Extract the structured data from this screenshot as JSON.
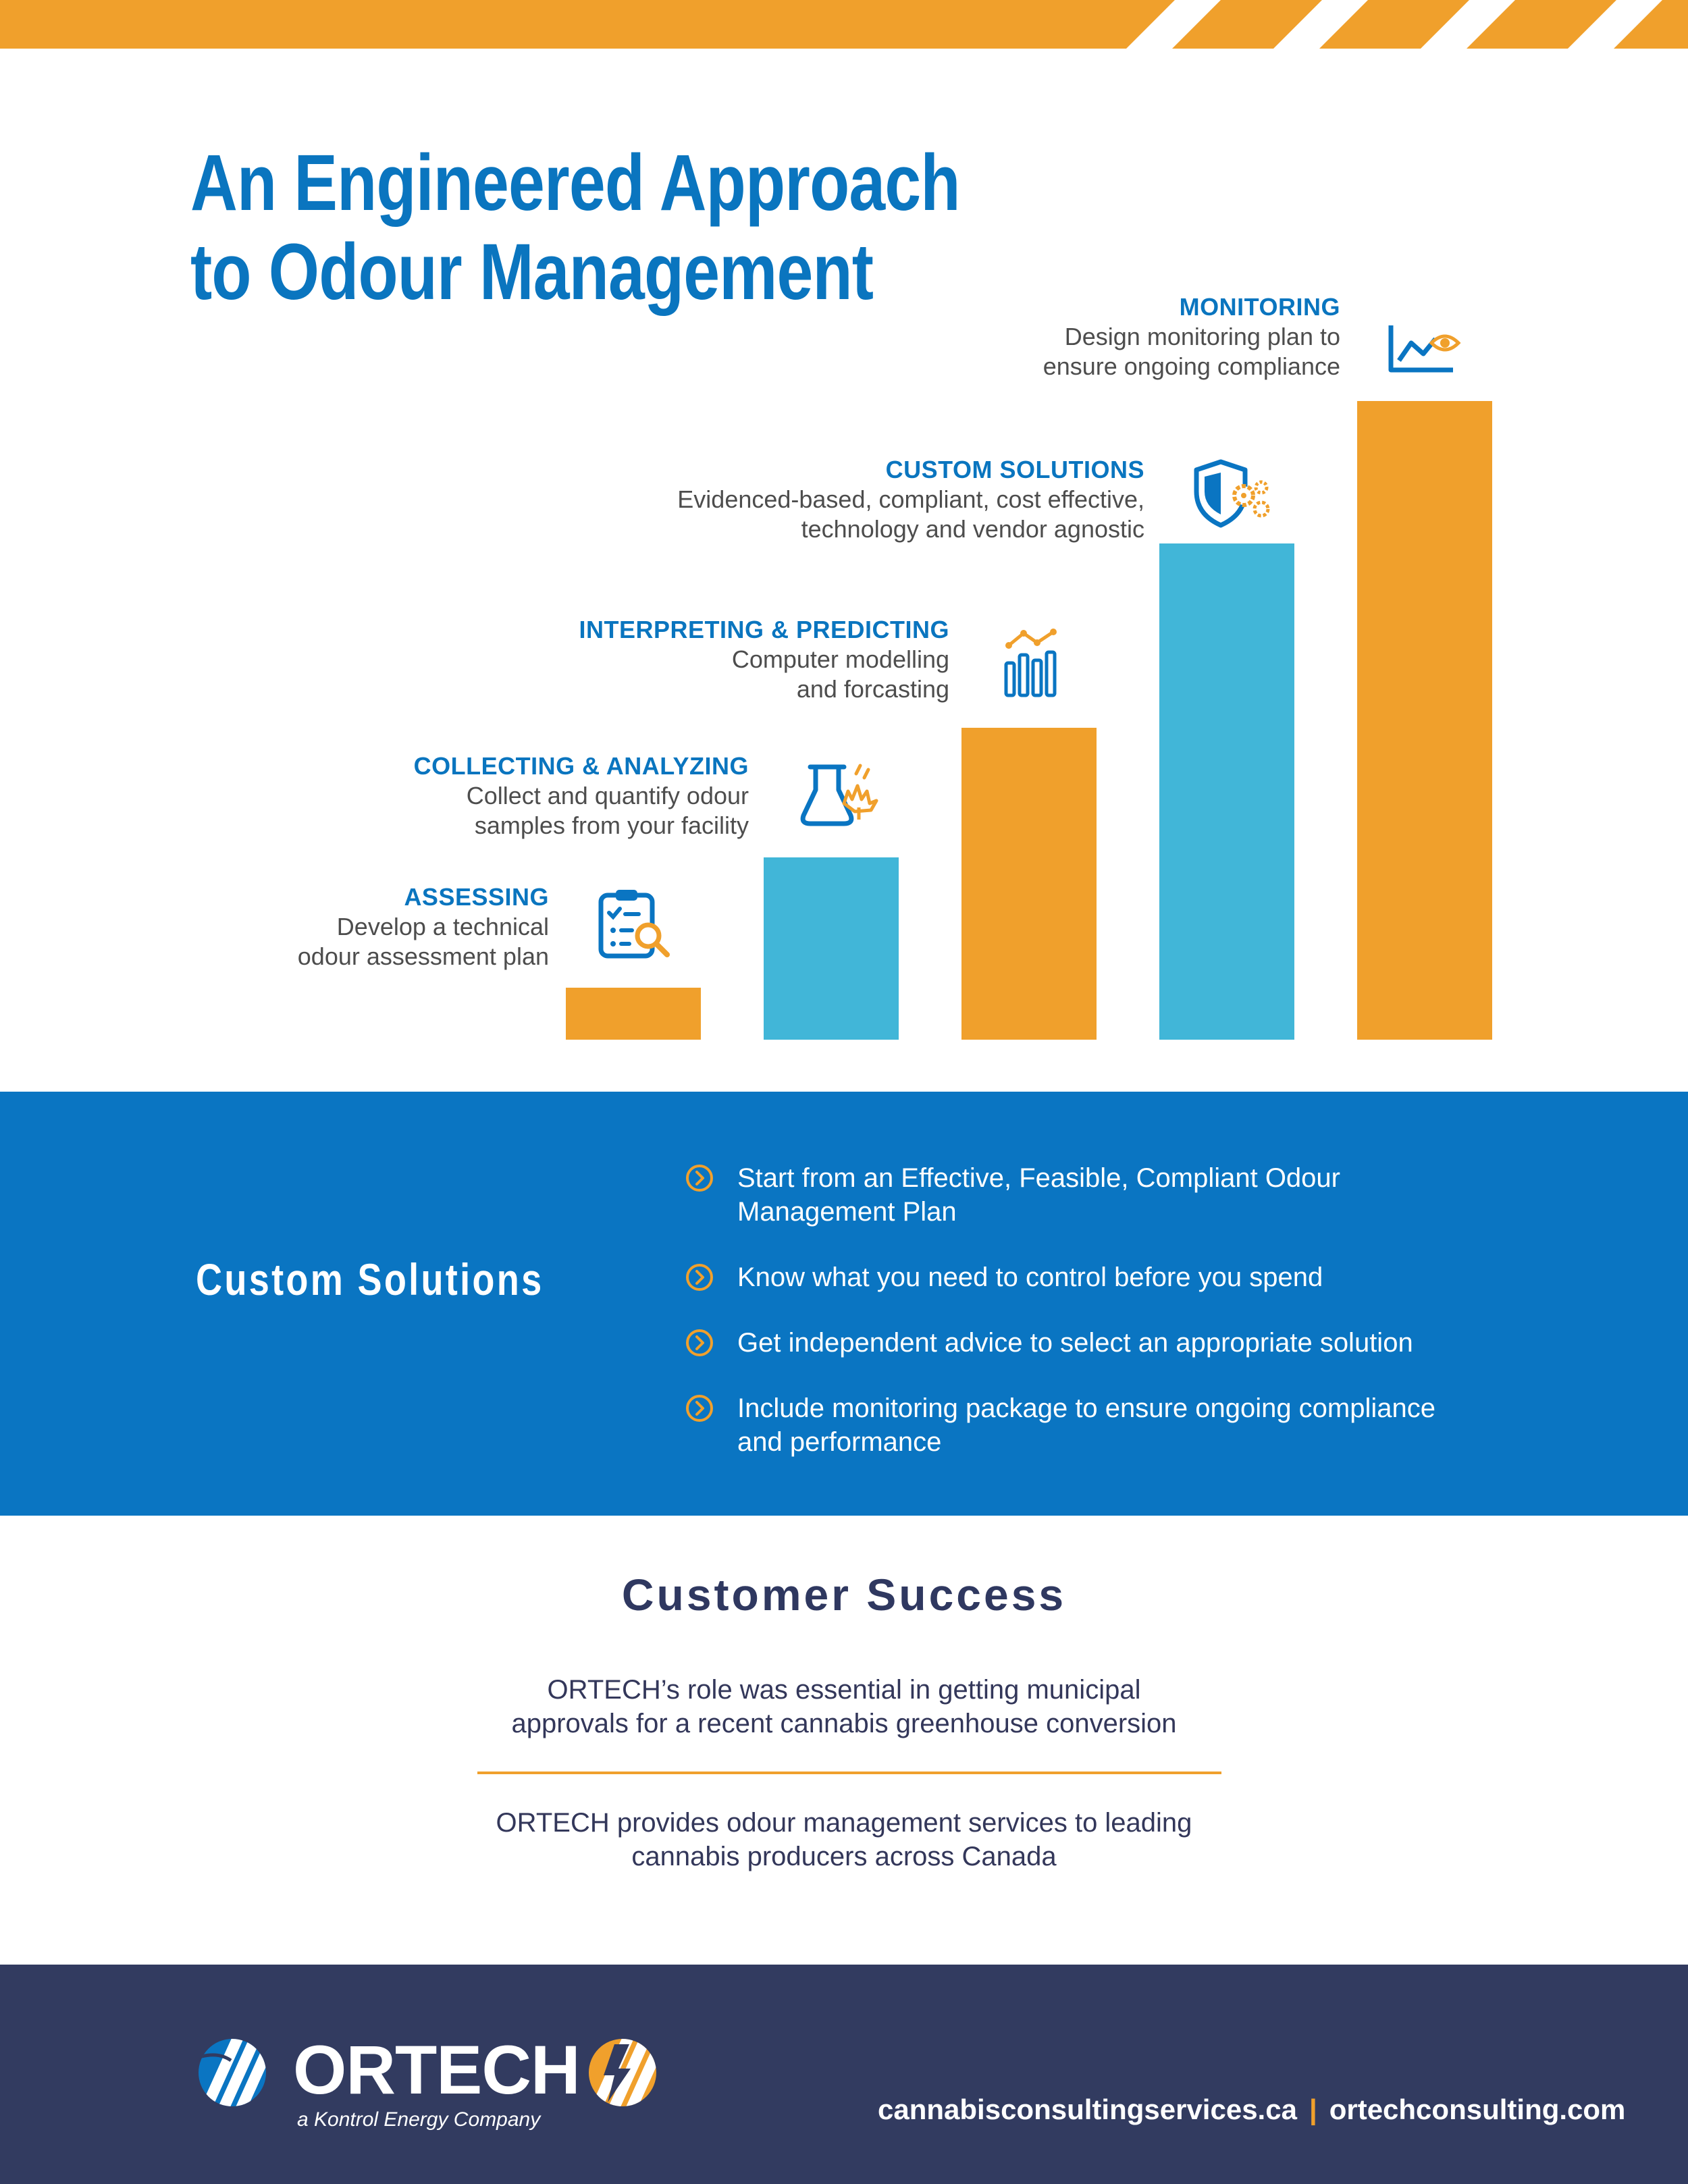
{
  "page": {
    "title_line1": "An Engineered Approach",
    "title_line2": "to Odour Management"
  },
  "colors": {
    "blue": "#0a75c2",
    "light_blue": "#41b6d8",
    "orange": "#f0a02c",
    "navy": "#323b60",
    "text_gray": "#4d4d4d"
  },
  "steps": [
    {
      "title": "ASSESSING",
      "desc_line1": "Develop a technical",
      "desc_line2": "odour assessment plan",
      "icon": "clipboard-search-icon",
      "bar_color": "orange",
      "level": 1
    },
    {
      "title": "COLLECTING & ANALYZING",
      "desc_line1": "Collect and quantify odour",
      "desc_line2": "samples from your facility",
      "icon": "flask-leaf-icon",
      "bar_color": "light_blue",
      "level": 2
    },
    {
      "title": "INTERPRETING & PREDICTING",
      "desc_line1": "Computer modelling",
      "desc_line2": "and forcasting",
      "icon": "bar-chart-trend-icon",
      "bar_color": "orange",
      "level": 3
    },
    {
      "title": "CUSTOM SOLUTIONS",
      "desc_line1": "Evidenced-based, compliant, cost effective,",
      "desc_line2": "technology and vendor agnostic",
      "icon": "shield-gears-icon",
      "bar_color": "light_blue",
      "level": 4
    },
    {
      "title": "MONITORING",
      "desc_line1": "Design monitoring plan to",
      "desc_line2": "ensure ongoing compliance",
      "icon": "chart-eye-icon",
      "bar_color": "orange",
      "level": 5
    }
  ],
  "solutions": {
    "heading": "Custom Solutions",
    "items": [
      {
        "line1": "Start from an Effective, Feasible, Compliant Odour",
        "line2": "Management Plan"
      },
      {
        "line1": "Know what you need to control before you spend",
        "line2": ""
      },
      {
        "line1": "Get independent advice to select an appropriate solution",
        "line2": ""
      },
      {
        "line1": "Include monitoring package to ensure ongoing compliance",
        "line2": "and performance"
      }
    ]
  },
  "success": {
    "heading": "Customer Success",
    "quote1_line1": "ORTECH’s role was essential in getting municipal",
    "quote1_line2": "approvals for a recent cannabis greenhouse conversion",
    "quote2_line1": "ORTECH provides odour management services to leading",
    "quote2_line2": "cannabis producers across Canada"
  },
  "footer": {
    "logo_text": "ORTECH",
    "tagline": "a Kontrol Energy Company",
    "link1": "cannabisconsultingservices.ca",
    "separator": "|",
    "link2": "ortechconsulting.com"
  }
}
